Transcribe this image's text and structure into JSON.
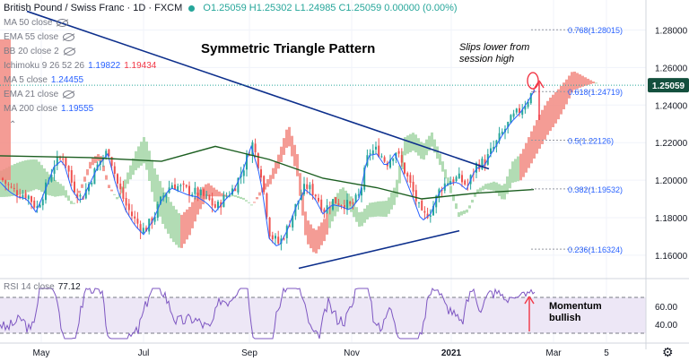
{
  "header": {
    "symbol": "British Pound / Swiss Franc · 1D · FXCM",
    "ohlc": "O1.25059 H1.25302 L1.24985 C1.25059 0.00000 (0.00%)"
  },
  "legend": [
    {
      "label": "MA 50 close",
      "value": "",
      "value2": "",
      "eye": true
    },
    {
      "label": "EMA 55 close",
      "value": "",
      "value2": "",
      "eye": true
    },
    {
      "label": "BB 20 close 2",
      "value": "",
      "value2": "",
      "eye": true
    },
    {
      "label": "Ichimoku 9 26 52 26",
      "value": "1.19822",
      "value2": "1.19434",
      "eye": false
    },
    {
      "label": "MA 5 close",
      "value": "1.24455",
      "value2": "",
      "eye": false
    },
    {
      "label": "EMA 21 close",
      "value": "",
      "value2": "",
      "eye": true
    },
    {
      "label": "MA 200 close",
      "value": "1.19555",
      "value2": "",
      "eye": false
    }
  ],
  "rsi_legend": {
    "label": "RSI 14 close",
    "value": "77.12"
  },
  "annotations": {
    "title": "Symmetric Triangle Pattern",
    "slips": "Slips lower from session high",
    "momentum": "Momentum bullish"
  },
  "colors": {
    "up": "#26a69a",
    "down": "#ef5350",
    "ma5": "#2962ff",
    "ma200": "#1b5e20",
    "trend": "#0d2f8c",
    "cloud_bull": "#a5d6a7",
    "cloud_bear": "#f28b82",
    "rsi": "#7e57c2",
    "rsi_bg": "#ede7f6",
    "fib": "#2962ff",
    "arrow": "#f23645"
  },
  "chart_data": [
    {
      "type": "candlestick",
      "title": "British Pound / Swiss Franc · 1D · FXCM",
      "x_ticks": [
        "May",
        "Jul",
        "Sep",
        "Nov",
        "2021",
        "Mar",
        "5"
      ],
      "y_ticks": [
        1.16,
        1.18,
        1.2,
        1.22,
        1.24,
        1.26,
        1.28
      ],
      "ylim": [
        1.148,
        1.296
      ],
      "last_price": "1.25059",
      "approx_close_path": [
        [
          0,
          1.201
        ],
        [
          10,
          1.196
        ],
        [
          20,
          1.193
        ],
        [
          30,
          1.192
        ],
        [
          40,
          1.185
        ],
        [
          50,
          1.196
        ],
        [
          60,
          1.209
        ],
        [
          70,
          1.213
        ],
        [
          80,
          1.197
        ],
        [
          90,
          1.19
        ],
        [
          100,
          1.2
        ],
        [
          110,
          1.21
        ],
        [
          120,
          1.216
        ],
        [
          130,
          1.198
        ],
        [
          140,
          1.186
        ],
        [
          150,
          1.178
        ],
        [
          160,
          1.173
        ],
        [
          170,
          1.18
        ],
        [
          180,
          1.191
        ],
        [
          190,
          1.198
        ],
        [
          200,
          1.196
        ],
        [
          210,
          1.194
        ],
        [
          220,
          1.193
        ],
        [
          230,
          1.19
        ],
        [
          240,
          1.185
        ],
        [
          250,
          1.191
        ],
        [
          260,
          1.196
        ],
        [
          270,
          1.206
        ],
        [
          280,
          1.22
        ],
        [
          290,
          1.204
        ],
        [
          300,
          1.171
        ],
        [
          310,
          1.166
        ],
        [
          320,
          1.175
        ],
        [
          330,
          1.188
        ],
        [
          340,
          1.197
        ],
        [
          350,
          1.193
        ],
        [
          360,
          1.184
        ],
        [
          370,
          1.189
        ],
        [
          380,
          1.188
        ],
        [
          390,
          1.186
        ],
        [
          400,
          1.192
        ],
        [
          410,
          1.215
        ],
        [
          420,
          1.216
        ],
        [
          430,
          1.209
        ],
        [
          440,
          1.216
        ],
        [
          450,
          1.205
        ],
        [
          460,
          1.193
        ],
        [
          470,
          1.18
        ],
        [
          480,
          1.184
        ],
        [
          490,
          1.196
        ],
        [
          500,
          1.2
        ],
        [
          510,
          1.201
        ],
        [
          520,
          1.197
        ],
        [
          530,
          1.208
        ],
        [
          540,
          1.21
        ],
        [
          550,
          1.218
        ],
        [
          560,
          1.226
        ],
        [
          570,
          1.233
        ],
        [
          580,
          1.238
        ],
        [
          590,
          1.245
        ],
        [
          597,
          1.251
        ]
      ],
      "fib_levels": [
        {
          "label": "0.768(1.28015)",
          "value": 1.28015
        },
        {
          "label": "0.618(1.24719)",
          "value": 1.24719
        },
        {
          "label": "0.5(1.22126)",
          "value": 1.22126
        },
        {
          "label": "0.382(1.19532)",
          "value": 1.19532
        },
        {
          "label": "0.236(1.16324)",
          "value": 1.16324
        }
      ],
      "trendlines": [
        {
          "name": "upper",
          "from": [
            30,
            1.29
          ],
          "to": [
            545,
            1.206
          ]
        },
        {
          "name": "lower",
          "from": [
            333,
            1.153
          ],
          "to": [
            512,
            1.173
          ]
        }
      ],
      "ma200_path": [
        [
          0,
          1.213
        ],
        [
          100,
          1.212
        ],
        [
          180,
          1.21
        ],
        [
          240,
          1.218
        ],
        [
          300,
          1.211
        ],
        [
          360,
          1.201
        ],
        [
          420,
          1.196
        ],
        [
          470,
          1.19
        ],
        [
          530,
          1.193
        ],
        [
          595,
          1.195
        ]
      ]
    },
    {
      "type": "line",
      "title": "RSI 14 close",
      "y_ticks": [
        40,
        60
      ],
      "ylim": [
        20,
        90
      ],
      "bands": [
        30,
        70
      ],
      "last_value": 77.12
    }
  ]
}
